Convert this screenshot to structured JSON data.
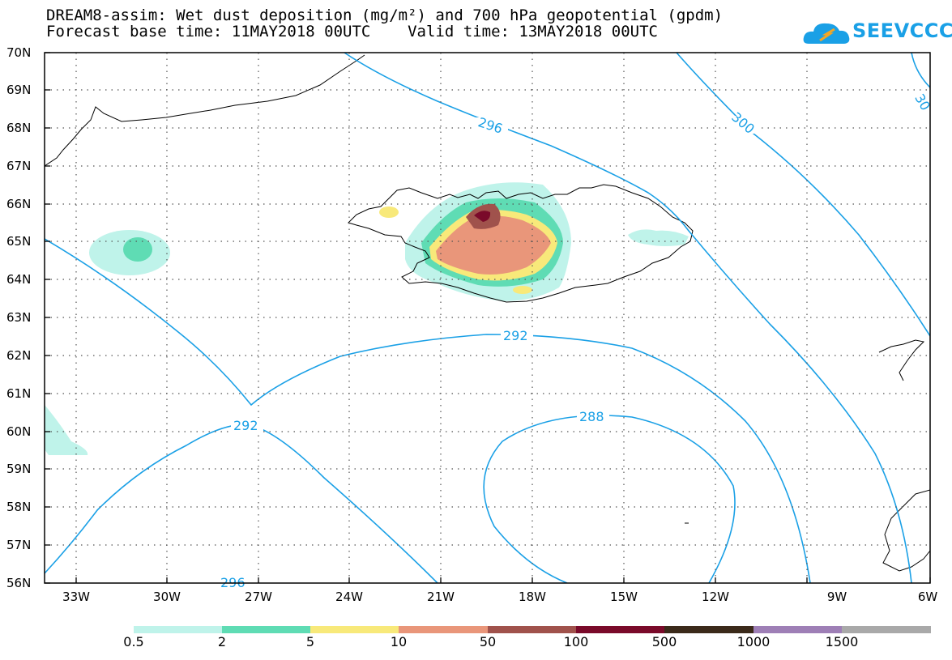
{
  "title_line1": "DREAM8-assim: Wet dust deposition (mg/m²) and 700 hPa geopotential (gpdm)",
  "title_line2": "Forecast base time: 11MAY2018 00UTC    Valid time: 13MAY2018 00UTC",
  "logo": {
    "text": "SEEVCCC",
    "icon": "cloud-logo-icon",
    "color": "#1aa0e6"
  },
  "map": {
    "lat_labels": [
      "70N",
      "69N",
      "68N",
      "67N",
      "66N",
      "65N",
      "64N",
      "63N",
      "62N",
      "61N",
      "60N",
      "59N",
      "58N",
      "57N",
      "56N"
    ],
    "lon_labels": [
      "33W",
      "30W",
      "27W",
      "24W",
      "21W",
      "18W",
      "15W",
      "12W",
      "9W",
      "6W"
    ],
    "lat_range": [
      56,
      70
    ],
    "lon_range": [
      -34.5,
      -6
    ],
    "grid": true,
    "contour_color": "#1aa0e6",
    "contour_labels": [
      "296",
      "300",
      "30",
      "292",
      "292",
      "288",
      "296"
    ]
  },
  "colorbar": {
    "labels": [
      "0.5",
      "2",
      "5",
      "10",
      "50",
      "100",
      "500",
      "1000",
      "1500"
    ],
    "colors": [
      "#bff3ea",
      "#5fdcb4",
      "#f8e97a",
      "#e9967a",
      "#a0524c",
      "#7a0a2a",
      "#3b2a1a",
      "#9e7fb6",
      "#a9a9a9"
    ]
  }
}
